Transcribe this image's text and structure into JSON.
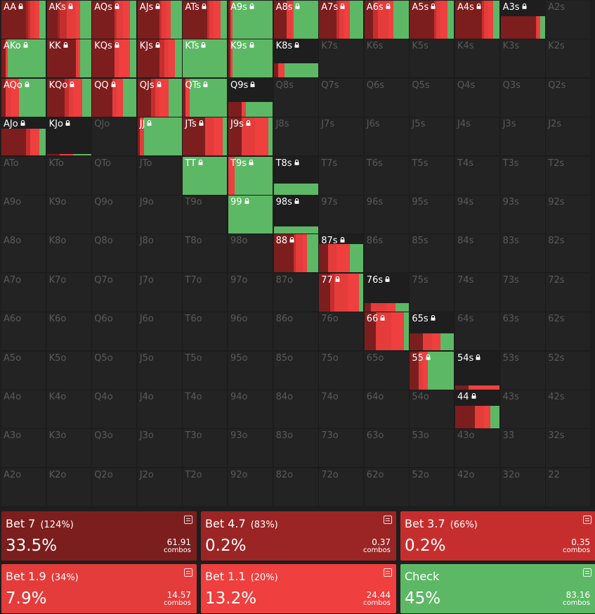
{
  "colors": {
    "bet7": "#7d1e1e",
    "bet47": "#9b2525",
    "bet37": "#c62e2e",
    "bet19": "#e43b3b",
    "bet11": "#ef3f3f",
    "check": "#5db865"
  },
  "actions": [
    {
      "key": "bet7",
      "name": "Bet 7",
      "size": "(124%)",
      "freq": "33.5%",
      "combos": "61.91",
      "unit": "combos"
    },
    {
      "key": "bet47",
      "name": "Bet 4.7",
      "size": "(83%)",
      "freq": "0.2%",
      "combos": "0.37",
      "unit": "combos"
    },
    {
      "key": "bet37",
      "name": "Bet 3.7",
      "size": "(66%)",
      "freq": "0.2%",
      "combos": "0.35",
      "unit": "combos"
    },
    {
      "key": "bet19",
      "name": "Bet 1.9",
      "size": "(34%)",
      "freq": "7.9%",
      "combos": "14.57",
      "unit": "combos"
    },
    {
      "key": "bet11",
      "name": "Bet 1.1",
      "size": "(20%)",
      "freq": "13.2%",
      "combos": "24.44",
      "unit": "combos"
    },
    {
      "key": "check",
      "name": "Check",
      "size": "",
      "freq": "45%",
      "combos": "83.16",
      "unit": "combos"
    }
  ],
  "grid": {
    "ranks": [
      "A",
      "K",
      "Q",
      "J",
      "T",
      "9",
      "8",
      "7",
      "6",
      "5",
      "4",
      "3",
      "2"
    ],
    "lock_icon": "lock-icon",
    "hands": {
      "AA": {
        "weight": 1,
        "mix": {
          "bet7": 0.55,
          "bet47": 0.05,
          "bet37": 0.05,
          "bet19": 0.1,
          "bet11": 0.1,
          "check": 0.15
        }
      },
      "AKs": {
        "weight": 1,
        "mix": {
          "bet7": 0.25,
          "bet47": 0.05,
          "bet37": 0.15,
          "bet19": 0.2,
          "bet11": 0.1,
          "check": 0.25
        }
      },
      "AQs": {
        "weight": 1,
        "mix": {
          "bet7": 0.5,
          "bet37": 0.05,
          "bet19": 0.15,
          "bet11": 0.15,
          "check": 0.15
        }
      },
      "AJs": {
        "weight": 1,
        "mix": {
          "bet7": 0.5,
          "bet37": 0.05,
          "bet19": 0.1,
          "bet11": 0.1,
          "check": 0.25
        }
      },
      "ATs": {
        "weight": 1,
        "mix": {
          "bet7": 0.55,
          "bet37": 0.05,
          "bet19": 0.1,
          "bet11": 0.15,
          "check": 0.15
        }
      },
      "A9s": {
        "weight": 1,
        "mix": {
          "bet7": 0.05,
          "bet11": 0.05,
          "check": 0.9
        }
      },
      "A8s": {
        "weight": 1,
        "mix": {
          "bet7": 0.3,
          "bet19": 0.1,
          "bet11": 0.05,
          "check": 0.55
        }
      },
      "A7s": {
        "weight": 1,
        "mix": {
          "bet7": 0.4,
          "bet37": 0.05,
          "bet19": 0.1,
          "bet11": 0.15,
          "check": 0.3
        }
      },
      "A6s": {
        "weight": 1,
        "mix": {
          "bet7": 0.2,
          "bet37": 0.1,
          "bet19": 0.25,
          "bet11": 0.1,
          "check": 0.35
        }
      },
      "A5s": {
        "weight": 1,
        "mix": {
          "bet7": 0.55,
          "bet37": 0.05,
          "bet19": 0.1,
          "bet11": 0.15,
          "check": 0.15
        }
      },
      "A4s": {
        "weight": 1,
        "mix": {
          "bet7": 0.6,
          "bet37": 0.05,
          "bet19": 0.1,
          "bet11": 0.1,
          "check": 0.15
        }
      },
      "A3s": {
        "weight": 0.6,
        "mix": {
          "bet7": 0.8,
          "bet19": 0.05,
          "bet11": 0.05,
          "check": 0.1
        }
      },
      "AKo": {
        "weight": 1,
        "mix": {
          "bet7": 0.1,
          "bet11": 0.05,
          "check": 0.85
        }
      },
      "KK": {
        "weight": 1,
        "mix": {
          "bet7": 0.65,
          "bet19": 0.05,
          "bet11": 0.05,
          "check": 0.25
        }
      },
      "KQs": {
        "weight": 1,
        "mix": {
          "bet7": 0.5,
          "bet19": 0.1,
          "bet11": 0.25,
          "check": 0.15
        }
      },
      "KJs": {
        "weight": 1,
        "mix": {
          "bet7": 0.5,
          "bet37": 0.1,
          "bet19": 0.1,
          "bet11": 0.15,
          "check": 0.15
        }
      },
      "KTs": {
        "weight": 1,
        "mix": {
          "check": 1
        }
      },
      "K9s": {
        "weight": 1,
        "mix": {
          "bet7": 0.05,
          "bet11": 0.05,
          "check": 0.9
        }
      },
      "K8s": {
        "weight": 0.38,
        "mix": {
          "bet7": 0.1,
          "bet11": 0.15,
          "check": 0.75
        }
      },
      "AQo": {
        "weight": 1,
        "mix": {
          "bet7": 0.1,
          "bet19": 0.1,
          "bet11": 0.2,
          "check": 0.6
        }
      },
      "KQo": {
        "weight": 1,
        "mix": {
          "bet7": 0.4,
          "bet37": 0.1,
          "bet19": 0.1,
          "bet11": 0.2,
          "check": 0.2
        }
      },
      "QQ": {
        "weight": 1,
        "mix": {
          "bet7": 0.45,
          "bet19": 0.1,
          "bet11": 0.15,
          "check": 0.3
        }
      },
      "QJs": {
        "weight": 1,
        "mix": {
          "bet7": 0.3,
          "bet37": 0.1,
          "bet19": 0.1,
          "bet11": 0.2,
          "check": 0.3
        }
      },
      "QTs": {
        "weight": 1,
        "mix": {
          "bet7": 0.05,
          "bet11": 0.1,
          "check": 0.85
        }
      },
      "Q9s": {
        "weight": 0.38,
        "mix": {
          "bet7": 0.3,
          "bet11": 0.1,
          "check": 0.6
        }
      },
      "AJo": {
        "weight": 0.7,
        "mix": {
          "bet7": 0.55,
          "bet37": 0.1,
          "bet11": 0.2,
          "check": 0.15
        }
      },
      "KJo": {
        "weight": 0.05,
        "mix": {
          "bet7": 0.3,
          "bet11": 0.3,
          "check": 0.4
        }
      },
      "JJ": {
        "weight": 1,
        "mix": {
          "bet7": 0.05,
          "bet19": 0.1,
          "check": 0.85
        }
      },
      "JTs": {
        "weight": 1,
        "mix": {
          "bet7": 0.5,
          "bet19": 0.2,
          "bet11": 0.2,
          "check": 0.1
        }
      },
      "J9s": {
        "weight": 1,
        "mix": {
          "bet7": 0.3,
          "bet19": 0.3,
          "bet11": 0.3,
          "check": 0.1
        }
      },
      "TT": {
        "weight": 1,
        "mix": {
          "check": 1
        }
      },
      "T9s": {
        "weight": 1,
        "mix": {
          "bet11": 0.15,
          "check": 0.85
        }
      },
      "T8s": {
        "weight": 0.28,
        "mix": {
          "check": 1
        }
      },
      "99": {
        "weight": 1,
        "mix": {
          "check": 1
        }
      },
      "98s": {
        "weight": 0.18,
        "mix": {
          "check": 1
        }
      },
      "88": {
        "weight": 1,
        "mix": {
          "bet7": 0.45,
          "bet37": 0.05,
          "bet19": 0.15,
          "bet11": 0.1,
          "check": 0.25
        }
      },
      "87s": {
        "weight": 0.75,
        "mix": {
          "bet7": 0.2,
          "bet19": 0.2,
          "bet11": 0.3,
          "check": 0.3
        }
      },
      "77": {
        "weight": 1,
        "mix": {
          "bet7": 0.25,
          "bet37": 0.1,
          "bet19": 0.3,
          "bet11": 0.25,
          "check": 0.1
        }
      },
      "76s": {
        "weight": 0.22,
        "mix": {
          "bet7": 0.15,
          "bet19": 0.35,
          "bet11": 0.2,
          "check": 0.3
        }
      },
      "66": {
        "weight": 1,
        "mix": {
          "bet7": 0.25,
          "bet19": 0.35,
          "bet11": 0.3,
          "check": 0.1
        }
      },
      "65s": {
        "weight": 0.45,
        "mix": {
          "bet7": 0.3,
          "bet19": 0.2,
          "bet11": 0.2,
          "check": 0.3
        }
      },
      "55": {
        "weight": 1,
        "mix": {
          "bet7": 0.2,
          "bet19": 0.1,
          "bet11": 0.1,
          "check": 0.6
        }
      },
      "54s": {
        "weight": 0.1,
        "mix": {
          "bet7": 0.3,
          "bet11": 0.7
        }
      },
      "44": {
        "weight": 0.6,
        "mix": {
          "bet7": 0.45,
          "bet19": 0.2,
          "bet11": 0.15,
          "check": 0.2
        }
      }
    }
  }
}
